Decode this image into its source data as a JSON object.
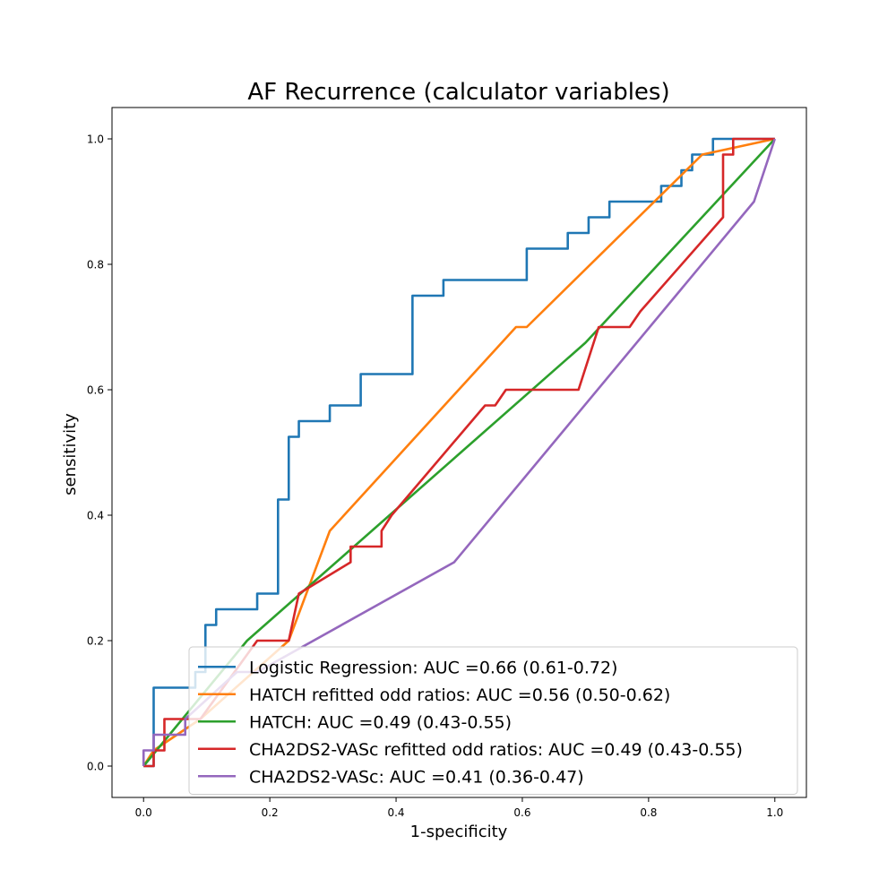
{
  "chart_data": {
    "type": "line",
    "title": "AF Recurrence (calculator variables)",
    "xlabel": "1-specificity",
    "ylabel": "sensitivity",
    "xlim": [
      -0.05,
      1.05
    ],
    "ylim": [
      -0.05,
      1.05
    ],
    "xticks": [
      "0.0",
      "0.2",
      "0.4",
      "0.6",
      "0.8",
      "1.0"
    ],
    "yticks": [
      "0.0",
      "0.2",
      "0.4",
      "0.6",
      "0.8",
      "1.0"
    ],
    "grid": false,
    "legend_position": "lower-right",
    "series": [
      {
        "name": "Logistic Regression: AUC =0.66 (0.61-0.72)",
        "color": "#1f77b4",
        "x": [
          0,
          0.016,
          0.016,
          0.082,
          0.082,
          0.098,
          0.098,
          0.115,
          0.115,
          0.18,
          0.18,
          0.213,
          0.213,
          0.23,
          0.23,
          0.246,
          0.246,
          0.295,
          0.295,
          0.344,
          0.344,
          0.426,
          0.426,
          0.475,
          0.475,
          0.607,
          0.607,
          0.672,
          0.672,
          0.705,
          0.705,
          0.738,
          0.738,
          0.82,
          0.82,
          0.852,
          0.852,
          0.869,
          0.869,
          0.902,
          0.902,
          1.0
        ],
        "y": [
          0,
          0,
          0.125,
          0.125,
          0.15,
          0.15,
          0.225,
          0.225,
          0.25,
          0.25,
          0.275,
          0.275,
          0.425,
          0.425,
          0.525,
          0.525,
          0.55,
          0.55,
          0.575,
          0.575,
          0.625,
          0.625,
          0.75,
          0.75,
          0.775,
          0.775,
          0.825,
          0.825,
          0.85,
          0.85,
          0.875,
          0.875,
          0.9,
          0.9,
          0.925,
          0.925,
          0.95,
          0.95,
          0.975,
          0.975,
          1.0,
          1.0
        ]
      },
      {
        "name": "HATCH refitted odd ratios: AUC =0.56 (0.50-0.62)",
        "color": "#ff7f0e",
        "x": [
          0,
          0.016,
          0.09,
          0.23,
          0.295,
          0.59,
          0.607,
          0.885,
          1.0
        ],
        "y": [
          0,
          0.025,
          0.075,
          0.2,
          0.375,
          0.7,
          0.7,
          0.975,
          1.0
        ]
      },
      {
        "name": "HATCH: AUC =0.49 (0.43-0.55)",
        "color": "#2ca02c",
        "x": [
          0,
          0.164,
          0.7,
          1.0
        ],
        "y": [
          0,
          0.2,
          0.675,
          1.0
        ]
      },
      {
        "name": "CHA2DS2-VASc refitted odd ratios: AUC =0.49 (0.43-0.55)",
        "color": "#d62728",
        "x": [
          0,
          0.016,
          0.016,
          0.033,
          0.033,
          0.09,
          0.18,
          0.197,
          0.23,
          0.246,
          0.328,
          0.328,
          0.377,
          0.377,
          0.393,
          0.541,
          0.557,
          0.574,
          0.689,
          0.721,
          0.77,
          0.787,
          0.918,
          0.918,
          0.934,
          0.934,
          1.0
        ],
        "y": [
          0,
          0,
          0.025,
          0.025,
          0.075,
          0.075,
          0.2,
          0.2,
          0.2,
          0.275,
          0.325,
          0.35,
          0.35,
          0.375,
          0.4,
          0.575,
          0.575,
          0.6,
          0.6,
          0.7,
          0.7,
          0.725,
          0.875,
          0.975,
          0.975,
          1.0,
          1.0
        ]
      },
      {
        "name": "CHA2DS2-VASc: AUC =0.41 (0.36-0.47)",
        "color": "#9467bd",
        "x": [
          0,
          0,
          0.016,
          0.016,
          0.066,
          0.066,
          0.148,
          0.18,
          0.492,
          0.967,
          1.0
        ],
        "y": [
          0,
          0.025,
          0.025,
          0.05,
          0.05,
          0.075,
          0.15,
          0.15,
          0.325,
          0.9,
          1.0
        ]
      }
    ]
  }
}
